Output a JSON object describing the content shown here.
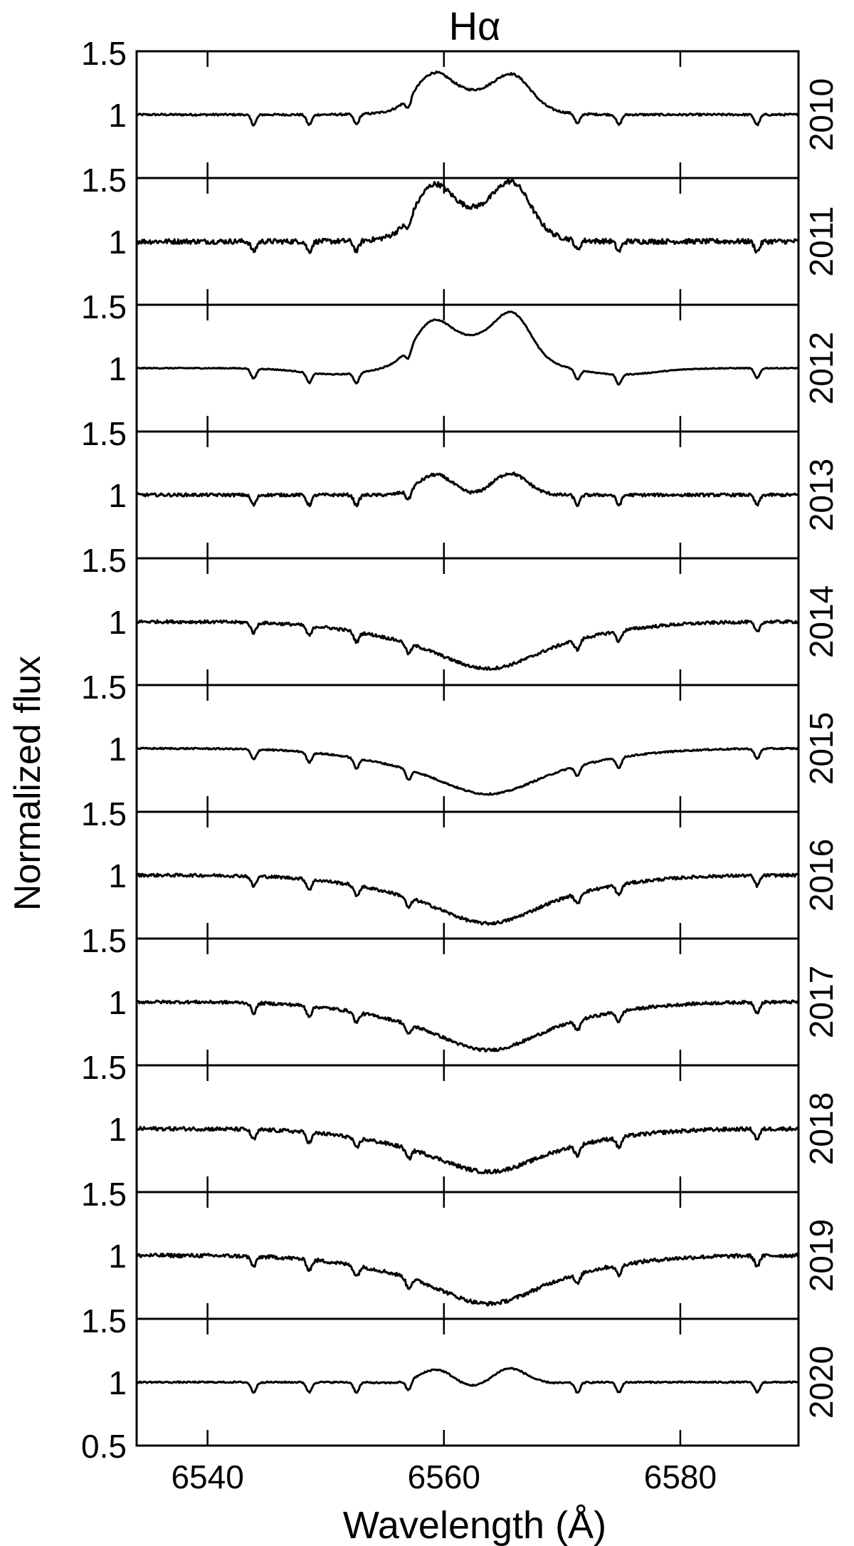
{
  "chart_data": {
    "type": "line",
    "title": "Hα",
    "xlabel": "Wavelength (Å)",
    "ylabel": "Normalized flux",
    "xlim": [
      6534,
      6590
    ],
    "x_ticks": [
      6540,
      6560,
      6580
    ],
    "x_tick_labels": [
      "6540",
      "6560",
      "6580"
    ],
    "y_tick_labels_per_panel": [
      "1.5",
      "1"
    ],
    "y_tick_label_bottom": "0.5",
    "grid": false,
    "panels": [
      {
        "name": "2010",
        "ylim": [
          0.5,
          1.5
        ],
        "mode": "emission",
        "peaks": [
          1.33,
          1.32
        ],
        "center": 1.16,
        "noise": 0.008
      },
      {
        "name": "2011",
        "ylim": [
          0.5,
          1.5
        ],
        "mode": "emission",
        "peaks": [
          1.45,
          1.47
        ],
        "center": 1.22,
        "noise": 0.02
      },
      {
        "name": "2012",
        "ylim": [
          0.5,
          1.5
        ],
        "mode": "emission",
        "peaks": [
          1.38,
          1.44
        ],
        "center": 1.22,
        "noise": 0.004,
        "wide_dip": 0.05
      },
      {
        "name": "2013",
        "ylim": [
          0.5,
          1.5
        ],
        "mode": "emission",
        "peaks": [
          1.16,
          1.17
        ],
        "center": 0.98,
        "noise": 0.012
      },
      {
        "name": "2014",
        "ylim": [
          0.5,
          1.5
        ],
        "mode": "absorption",
        "min": 0.63,
        "noise": 0.012
      },
      {
        "name": "2015",
        "ylim": [
          0.5,
          1.5
        ],
        "mode": "absorption",
        "min": 0.64,
        "noise": 0.006
      },
      {
        "name": "2016",
        "ylim": [
          0.5,
          1.5
        ],
        "mode": "absorption",
        "min": 0.62,
        "noise": 0.012
      },
      {
        "name": "2017",
        "ylim": [
          0.5,
          1.5
        ],
        "mode": "absorption",
        "min": 0.62,
        "noise": 0.012
      },
      {
        "name": "2018",
        "ylim": [
          0.5,
          1.5
        ],
        "mode": "absorption",
        "min": 0.66,
        "noise": 0.015
      },
      {
        "name": "2019",
        "ylim": [
          0.5,
          1.5
        ],
        "mode": "absorption",
        "min": 0.62,
        "noise": 0.015
      },
      {
        "name": "2020",
        "ylim": [
          0.5,
          1.5
        ],
        "mode": "emission",
        "peaks": [
          1.1,
          1.11
        ],
        "center": 0.94,
        "noise": 0.006
      }
    ],
    "telluric_lines": [
      6543.9,
      6548.6,
      6552.6,
      6557.0,
      6571.3,
      6574.8,
      6586.5
    ],
    "color": "#000000"
  }
}
